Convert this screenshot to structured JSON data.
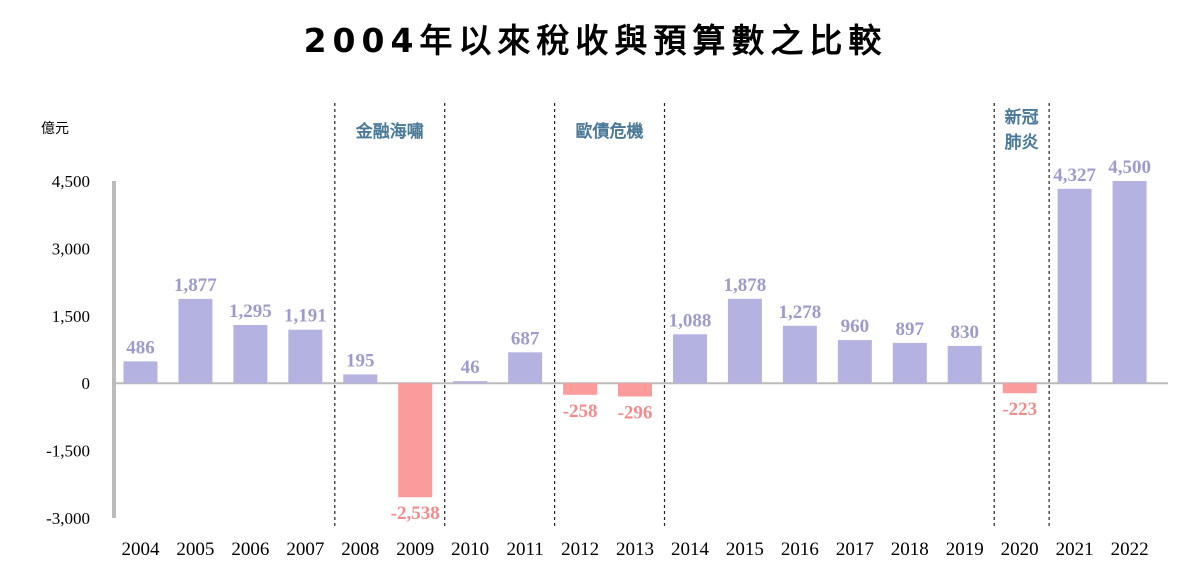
{
  "chart_data": {
    "type": "bar",
    "title": "2004年以來稅收與預算數之比較",
    "ylabel": "億元",
    "ylim": [
      -3000,
      4500
    ],
    "yticks": [
      4500,
      3000,
      1500,
      0,
      -1500,
      -3000
    ],
    "ytick_labels": [
      "4,500",
      "3,000",
      "1,500",
      "0",
      "-1,500",
      "-3,000"
    ],
    "categories": [
      "2004",
      "2005",
      "2006",
      "2007",
      "2008",
      "2009",
      "2010",
      "2011",
      "2012",
      "2013",
      "2014",
      "2015",
      "2016",
      "2017",
      "2018",
      "2019",
      "2020",
      "2021",
      "2022"
    ],
    "values": [
      486,
      1877,
      1295,
      1191,
      195,
      -2538,
      46,
      687,
      -258,
      -296,
      1088,
      1878,
      1278,
      960,
      897,
      830,
      -223,
      4327,
      4500
    ],
    "data_labels": [
      "486",
      "1,877",
      "1,295",
      "1,191",
      "195",
      "-2,538",
      "46",
      "687",
      "-258",
      "-296",
      "1,088",
      "1,878",
      "1,278",
      "960",
      "897",
      "830",
      "-223",
      "4,327",
      "4,500"
    ],
    "annotations": [
      {
        "text": "金融海嘯",
        "from": "2008",
        "to": "2009"
      },
      {
        "text": "歐債危機",
        "from": "2012",
        "to": "2013"
      },
      {
        "text": "新冠肺炎",
        "from": "2020",
        "to": "2020"
      }
    ],
    "colors": {
      "positive": "#b4b2e0",
      "negative": "#fc9b9b",
      "positive_label": "#9d9bcb",
      "negative_label": "#f28c8c",
      "annotation": "#4a7a98",
      "axis": "#bbbbbb"
    },
    "grid": false,
    "legend": "none"
  }
}
